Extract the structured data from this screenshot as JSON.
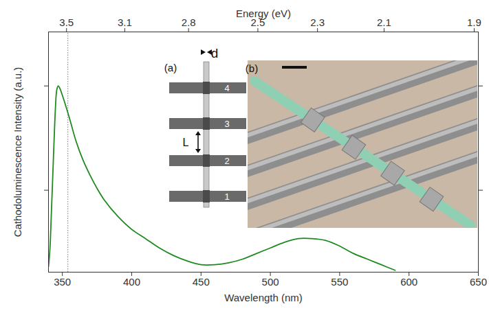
{
  "chart_data": {
    "type": "line",
    "x_label": "Wavelength (nm)",
    "y_label": "Cathodoluminescence Intensity (a.u.)",
    "x2_label": "Energy (eV)",
    "x": [
      340,
      341,
      342,
      343,
      344,
      345,
      346,
      347,
      348,
      350,
      355,
      360,
      365,
      370,
      375,
      380,
      390,
      400,
      410,
      420,
      430,
      440,
      450,
      460,
      470,
      480,
      490,
      500,
      510,
      520,
      530,
      540,
      550,
      560,
      570,
      580,
      590
    ],
    "values": [
      0.03,
      0.12,
      0.3,
      0.5,
      0.7,
      0.88,
      0.98,
      1.0,
      0.99,
      0.95,
      0.83,
      0.7,
      0.6,
      0.52,
      0.45,
      0.39,
      0.3,
      0.23,
      0.18,
      0.13,
      0.09,
      0.06,
      0.04,
      0.04,
      0.05,
      0.07,
      0.1,
      0.13,
      0.16,
      0.18,
      0.18,
      0.17,
      0.14,
      0.1,
      0.07,
      0.04,
      0.01
    ],
    "color": "#1f8a1f",
    "xlim": [
      340,
      650
    ],
    "xticks": [
      350,
      400,
      450,
      500,
      550,
      600,
      650
    ],
    "x2ticks": [
      {
        "value": 353,
        "label": "3.5"
      },
      {
        "value": 395,
        "label": "3.1"
      },
      {
        "value": 441,
        "label": "2.8"
      },
      {
        "value": 491,
        "label": "2.5"
      },
      {
        "value": 534,
        "label": "2.3"
      },
      {
        "value": 582,
        "label": "2.1"
      },
      {
        "value": 647,
        "label": "1.9"
      }
    ],
    "ylim": [
      0,
      1.29
    ],
    "yticks": [
      0.44,
      1
    ],
    "tick_labels": "x",
    "reference_x": 354,
    "insets": {
      "a": {
        "label": "(a)",
        "dimension_labels": [
          "d",
          "L"
        ],
        "contact_labels": [
          "4",
          "3",
          "2",
          "1"
        ]
      },
      "b": {
        "label": "(b)"
      }
    }
  }
}
